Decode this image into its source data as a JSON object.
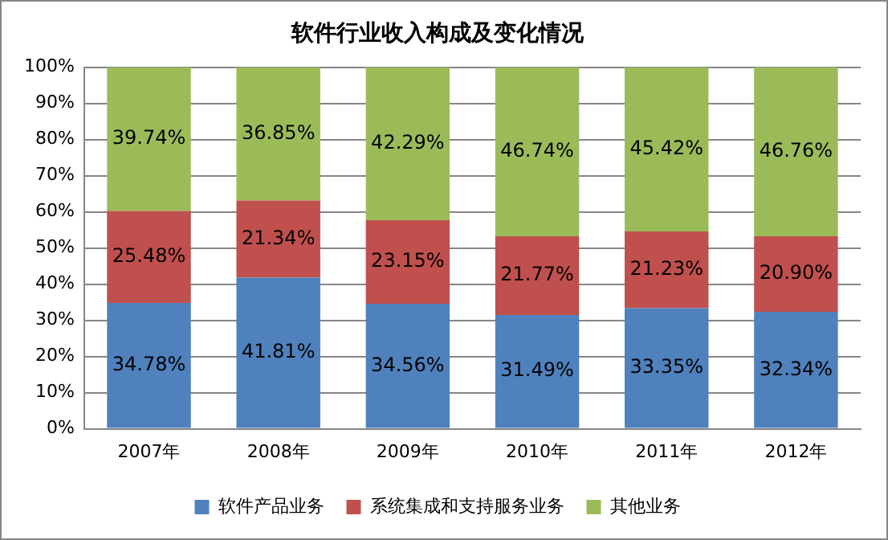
{
  "chart_data": {
    "type": "bar",
    "title": "软件行业收入构成及变化情况",
    "stacked": true,
    "categories": [
      "2007年",
      "2008年",
      "2009年",
      "2010年",
      "2011年",
      "2012年"
    ],
    "series": [
      {
        "name": "软件产品业务",
        "color": "#4f81bd",
        "values": [
          34.78,
          41.81,
          34.56,
          31.49,
          33.35,
          32.34
        ],
        "value_labels": [
          "34.78%",
          "41.81%",
          "34.56%",
          "31.49%",
          "33.35%",
          "32.34%"
        ]
      },
      {
        "name": "系统集成和支持服务业务",
        "color": "#c0504d",
        "values": [
          25.48,
          21.34,
          23.15,
          21.77,
          21.23,
          20.9
        ],
        "value_labels": [
          "25.48%",
          "21.34%",
          "23.15%",
          "21.77%",
          "21.23%",
          "20.90%"
        ]
      },
      {
        "name": "其他业务",
        "color": "#9bbb59",
        "values": [
          39.74,
          36.85,
          42.29,
          46.74,
          45.42,
          46.76
        ],
        "value_labels": [
          "39.74%",
          "36.85%",
          "42.29%",
          "46.74%",
          "45.42%",
          "46.76%"
        ]
      }
    ],
    "ylim": [
      0,
      100
    ],
    "yticks": [
      {
        "value": 0,
        "label": "0%"
      },
      {
        "value": 10,
        "label": "10%"
      },
      {
        "value": 20,
        "label": "20%"
      },
      {
        "value": 30,
        "label": "30%"
      },
      {
        "value": 40,
        "label": "40%"
      },
      {
        "value": 50,
        "label": "50%"
      },
      {
        "value": 60,
        "label": "60%"
      },
      {
        "value": 70,
        "label": "70%"
      },
      {
        "value": 80,
        "label": "80%"
      },
      {
        "value": 90,
        "label": "90%"
      },
      {
        "value": 100,
        "label": "100%"
      }
    ],
    "grid": "y",
    "legend": "bottom"
  }
}
